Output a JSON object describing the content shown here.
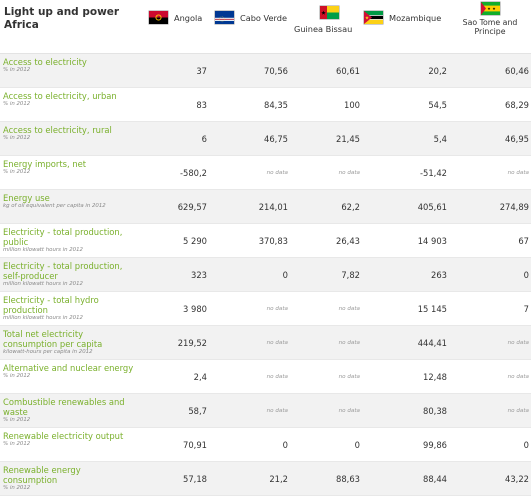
{
  "title": "Light up and power Africa",
  "countries": [
    {
      "name": "Angola",
      "flag": "angola-flag"
    },
    {
      "name": "Cabo Verde",
      "flag": "cabo-verde-flag"
    },
    {
      "name": "Guinea Bissau",
      "flag": "guinea-bissau-flag"
    },
    {
      "name": "Mozambique",
      "flag": "mozambique-flag"
    },
    {
      "name": "Sao Tome and Principe",
      "flag": "sao-tome-and-principe-flag"
    }
  ],
  "rows": [
    {
      "label": "Access to electricity",
      "unit": "% in 2012",
      "values": [
        "37",
        "70,56",
        "60,61",
        "20,2",
        "60,46"
      ]
    },
    {
      "label": "Access to electricity, urban",
      "unit": "% in 2012",
      "values": [
        "83",
        "84,35",
        "100",
        "54,5",
        "68,29"
      ]
    },
    {
      "label": "Access to electricity, rural",
      "unit": "% in 2012",
      "values": [
        "6",
        "46,75",
        "21,45",
        "5,4",
        "46,95"
      ]
    },
    {
      "label": "Energy imports, net",
      "unit": "% in 2012",
      "values": [
        "-580,2",
        "no data",
        "no data",
        "-51,42",
        "no data"
      ]
    },
    {
      "label": "Energy use",
      "unit": "kg of oil equivalent per capita in 2012",
      "values": [
        "629,57",
        "214,01",
        "62,2",
        "405,61",
        "274,89"
      ]
    },
    {
      "label": "Electricity - total production, public",
      "unit": "million kilowatt hours in 2012",
      "values": [
        "5 290",
        "370,83",
        "26,43",
        "14 903",
        "67"
      ]
    },
    {
      "label": "Electricity - total production, self-producer",
      "unit": "million kilowatt hours in 2012",
      "values": [
        "323",
        "0",
        "7,82",
        "263",
        "0"
      ]
    },
    {
      "label": "Electricity - total hydro production",
      "unit": "million kilowatt hours in 2012",
      "values": [
        "3 980",
        "no data",
        "no data",
        "15 145",
        "7"
      ]
    },
    {
      "label": "Total net electricity consumption per capita",
      "unit": "kilowatt-hours per capita in 2012",
      "values": [
        "219,52",
        "no data",
        "no data",
        "444,41",
        "no data"
      ]
    },
    {
      "label": "Alternative and nuclear energy",
      "unit": "% in 2012",
      "values": [
        "2,4",
        "no data",
        "no data",
        "12,48",
        "no data"
      ]
    },
    {
      "label": "Combustible renewables and waste",
      "unit": "% in 2012",
      "values": [
        "58,7",
        "no data",
        "no data",
        "80,38",
        "no data"
      ]
    },
    {
      "label": "Renewable electricity output",
      "unit": "% in 2012",
      "values": [
        "70,91",
        "0",
        "0",
        "99,86",
        "0"
      ]
    },
    {
      "label": "Renewable energy consumption",
      "unit": "% in 2012",
      "values": [
        "57,18",
        "21,2",
        "88,63",
        "88,44",
        "43,22"
      ]
    }
  ]
}
